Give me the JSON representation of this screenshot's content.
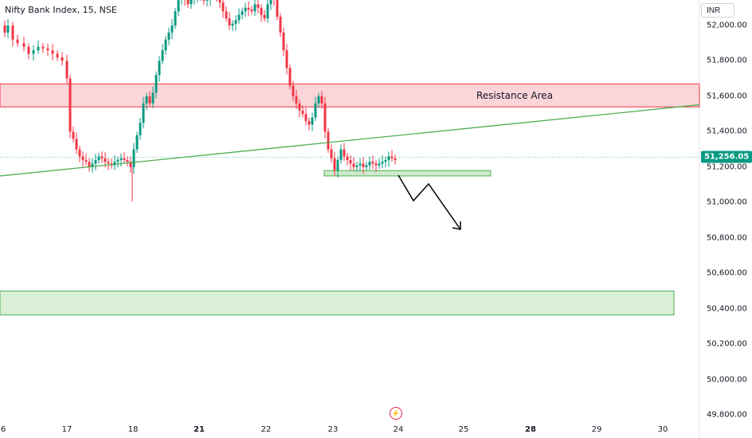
{
  "header": {
    "symbol_title": "Nifty Bank Index, 15, NSE",
    "currency_button": "INR"
  },
  "chart_data": {
    "type": "candlestick",
    "title": "Nifty Bank Index, 15, NSE",
    "y_range": [
      49750,
      52200
    ],
    "y_ticks": [
      "52,000.00",
      "51,800.00",
      "51,600.00",
      "51,400.00",
      "51,200.00",
      "51,000.00",
      "50,800.00",
      "50,600.00",
      "50,400.00",
      "50,200.00",
      "50,000.00",
      "49,800.00"
    ],
    "x_ticks": [
      {
        "label": "6",
        "bold": false
      },
      {
        "label": "17",
        "bold": false
      },
      {
        "label": "18",
        "bold": false
      },
      {
        "label": "21",
        "bold": true
      },
      {
        "label": "22",
        "bold": false
      },
      {
        "label": "23",
        "bold": false
      },
      {
        "label": "24",
        "bold": false
      },
      {
        "label": "25",
        "bold": false
      },
      {
        "label": "28",
        "bold": true
      },
      {
        "label": "29",
        "bold": false
      },
      {
        "label": "30",
        "bold": false
      }
    ],
    "last_price": {
      "label": "51,256.05",
      "value": 51256.05,
      "color": "#089981"
    },
    "colors": {
      "up": "#089981",
      "down": "#f23645",
      "trendline": "#4caf50",
      "resistance": "#f7b3b8",
      "support": "#b9e3b5"
    },
    "annotations": {
      "resistance_label": "Resistance Area",
      "resistance_zone": [
        51540,
        51670
      ],
      "support_zone_near": [
        51150,
        51180
      ],
      "support_zone_far": [
        50365,
        50500
      ]
    }
  }
}
